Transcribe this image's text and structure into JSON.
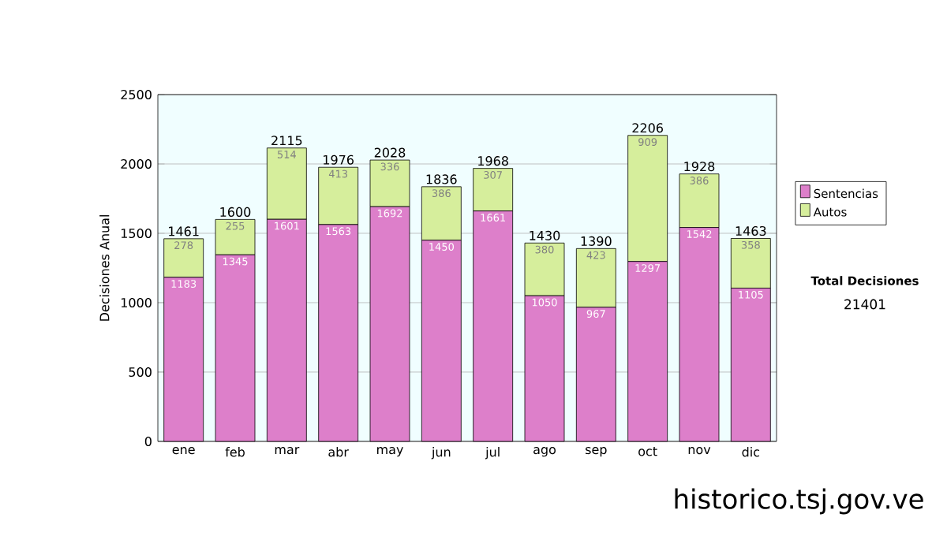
{
  "chart_data": {
    "type": "bar",
    "stacked": true,
    "ylabel": "Decisiones Anual",
    "categories": [
      "ene",
      "feb",
      "mar",
      "abr",
      "may",
      "jun",
      "jul",
      "ago",
      "sep",
      "oct",
      "nov",
      "dic"
    ],
    "series": [
      {
        "name": "Sentencias",
        "color": "#dd7fca",
        "values": [
          1183,
          1345,
          1601,
          1563,
          1692,
          1450,
          1661,
          1050,
          967,
          1297,
          1542,
          1105
        ]
      },
      {
        "name": "Autos",
        "color": "#d6ee9c",
        "values": [
          278,
          255,
          514,
          413,
          336,
          386,
          307,
          380,
          423,
          909,
          386,
          358
        ]
      }
    ],
    "totals": [
      "1461",
      "1600",
      "2115",
      "1976",
      "2028",
      "1836",
      "1968",
      "1430",
      "1390",
      "2206",
      "1928",
      "1463"
    ],
    "data_labels": true,
    "ylim": [
      0,
      2500
    ],
    "yticks": [
      0,
      500,
      1000,
      1500,
      2000,
      2500
    ],
    "grid": "y",
    "legend": "right",
    "annotations": [
      "Total Decisiones",
      "21401",
      "historico.tsj.gov.ve"
    ]
  }
}
